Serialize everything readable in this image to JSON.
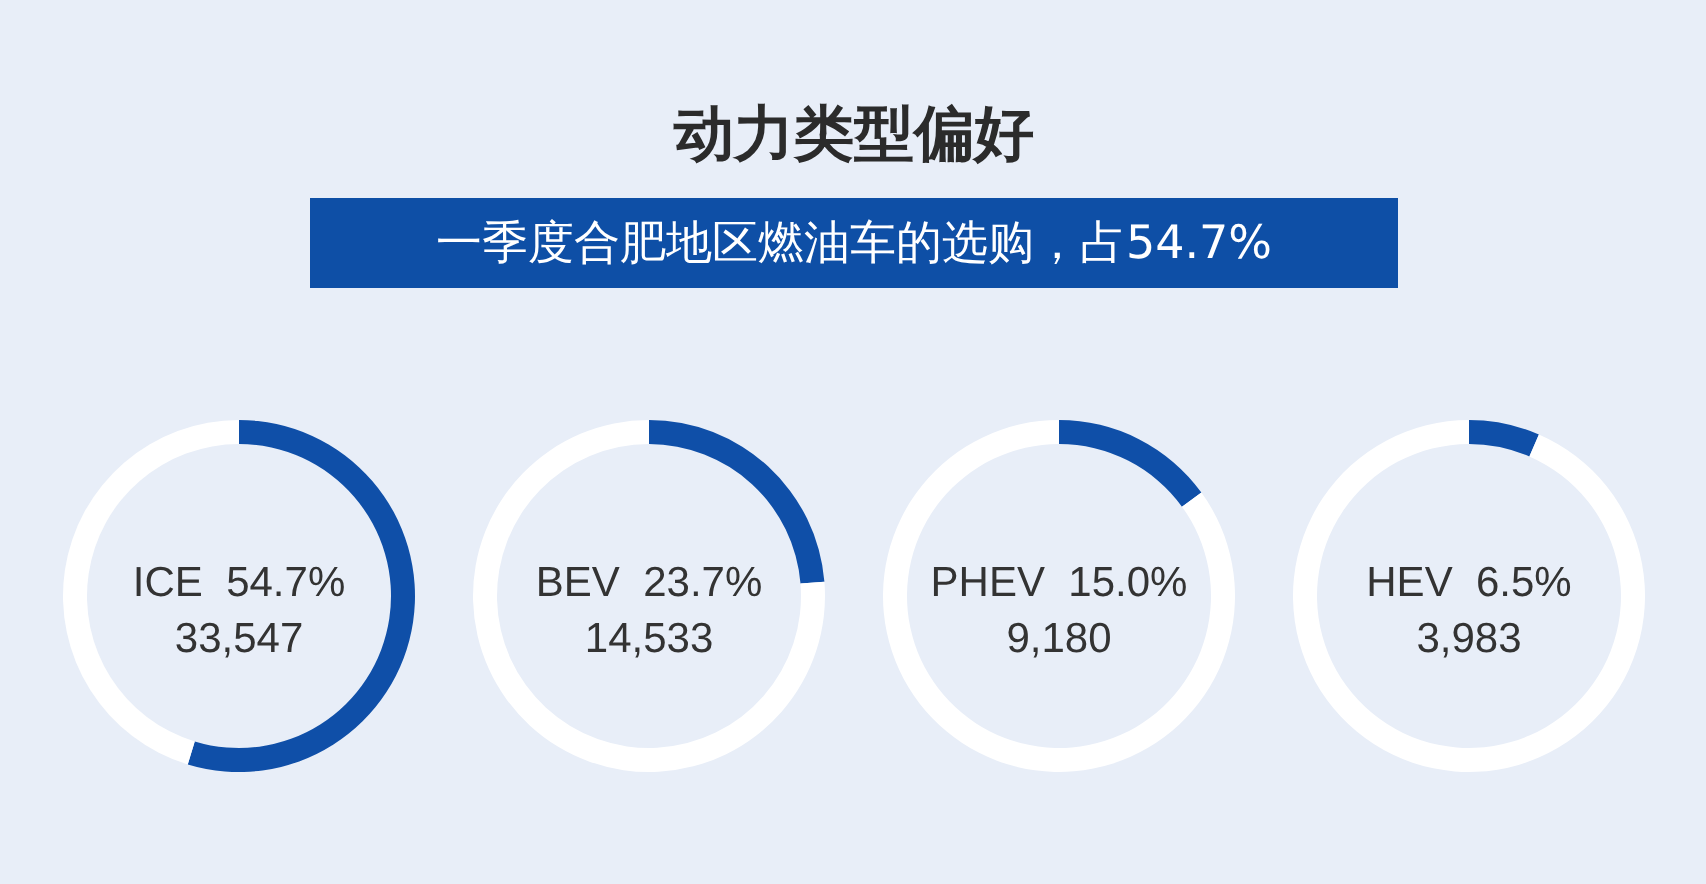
{
  "chart_data": [
    {
      "type": "other",
      "title": "动力类型偏好",
      "subtitle": "一季度合肥地区燃油车的选购，占54.7%"
    },
    {
      "type": "donut",
      "categories": [
        "ICE",
        null
      ],
      "values": [
        54.7,
        45.3
      ],
      "colors": [
        "#0f4fa8",
        "#ffffff"
      ],
      "value_labels": [
        "54.7%",
        null
      ],
      "annotations": [
        "33,547"
      ]
    },
    {
      "type": "donut",
      "categories": [
        "BEV",
        null
      ],
      "values": [
        23.7,
        76.3
      ],
      "colors": [
        "#0f4fa8",
        "#ffffff"
      ],
      "value_labels": [
        "23.7%",
        null
      ],
      "annotations": [
        "14,533"
      ]
    },
    {
      "type": "donut",
      "categories": [
        "PHEV",
        null
      ],
      "values": [
        15.0,
        85.0
      ],
      "colors": [
        "#0f4fa8",
        "#ffffff"
      ],
      "value_labels": [
        "15.0%",
        null
      ],
      "annotations": [
        "9,180"
      ]
    },
    {
      "type": "donut",
      "categories": [
        "HEV",
        null
      ],
      "values": [
        6.5,
        93.5
      ],
      "colors": [
        "#0f4fa8",
        "#ffffff"
      ],
      "value_labels": [
        "6.5%",
        null
      ],
      "annotations": [
        "3,983"
      ]
    }
  ]
}
